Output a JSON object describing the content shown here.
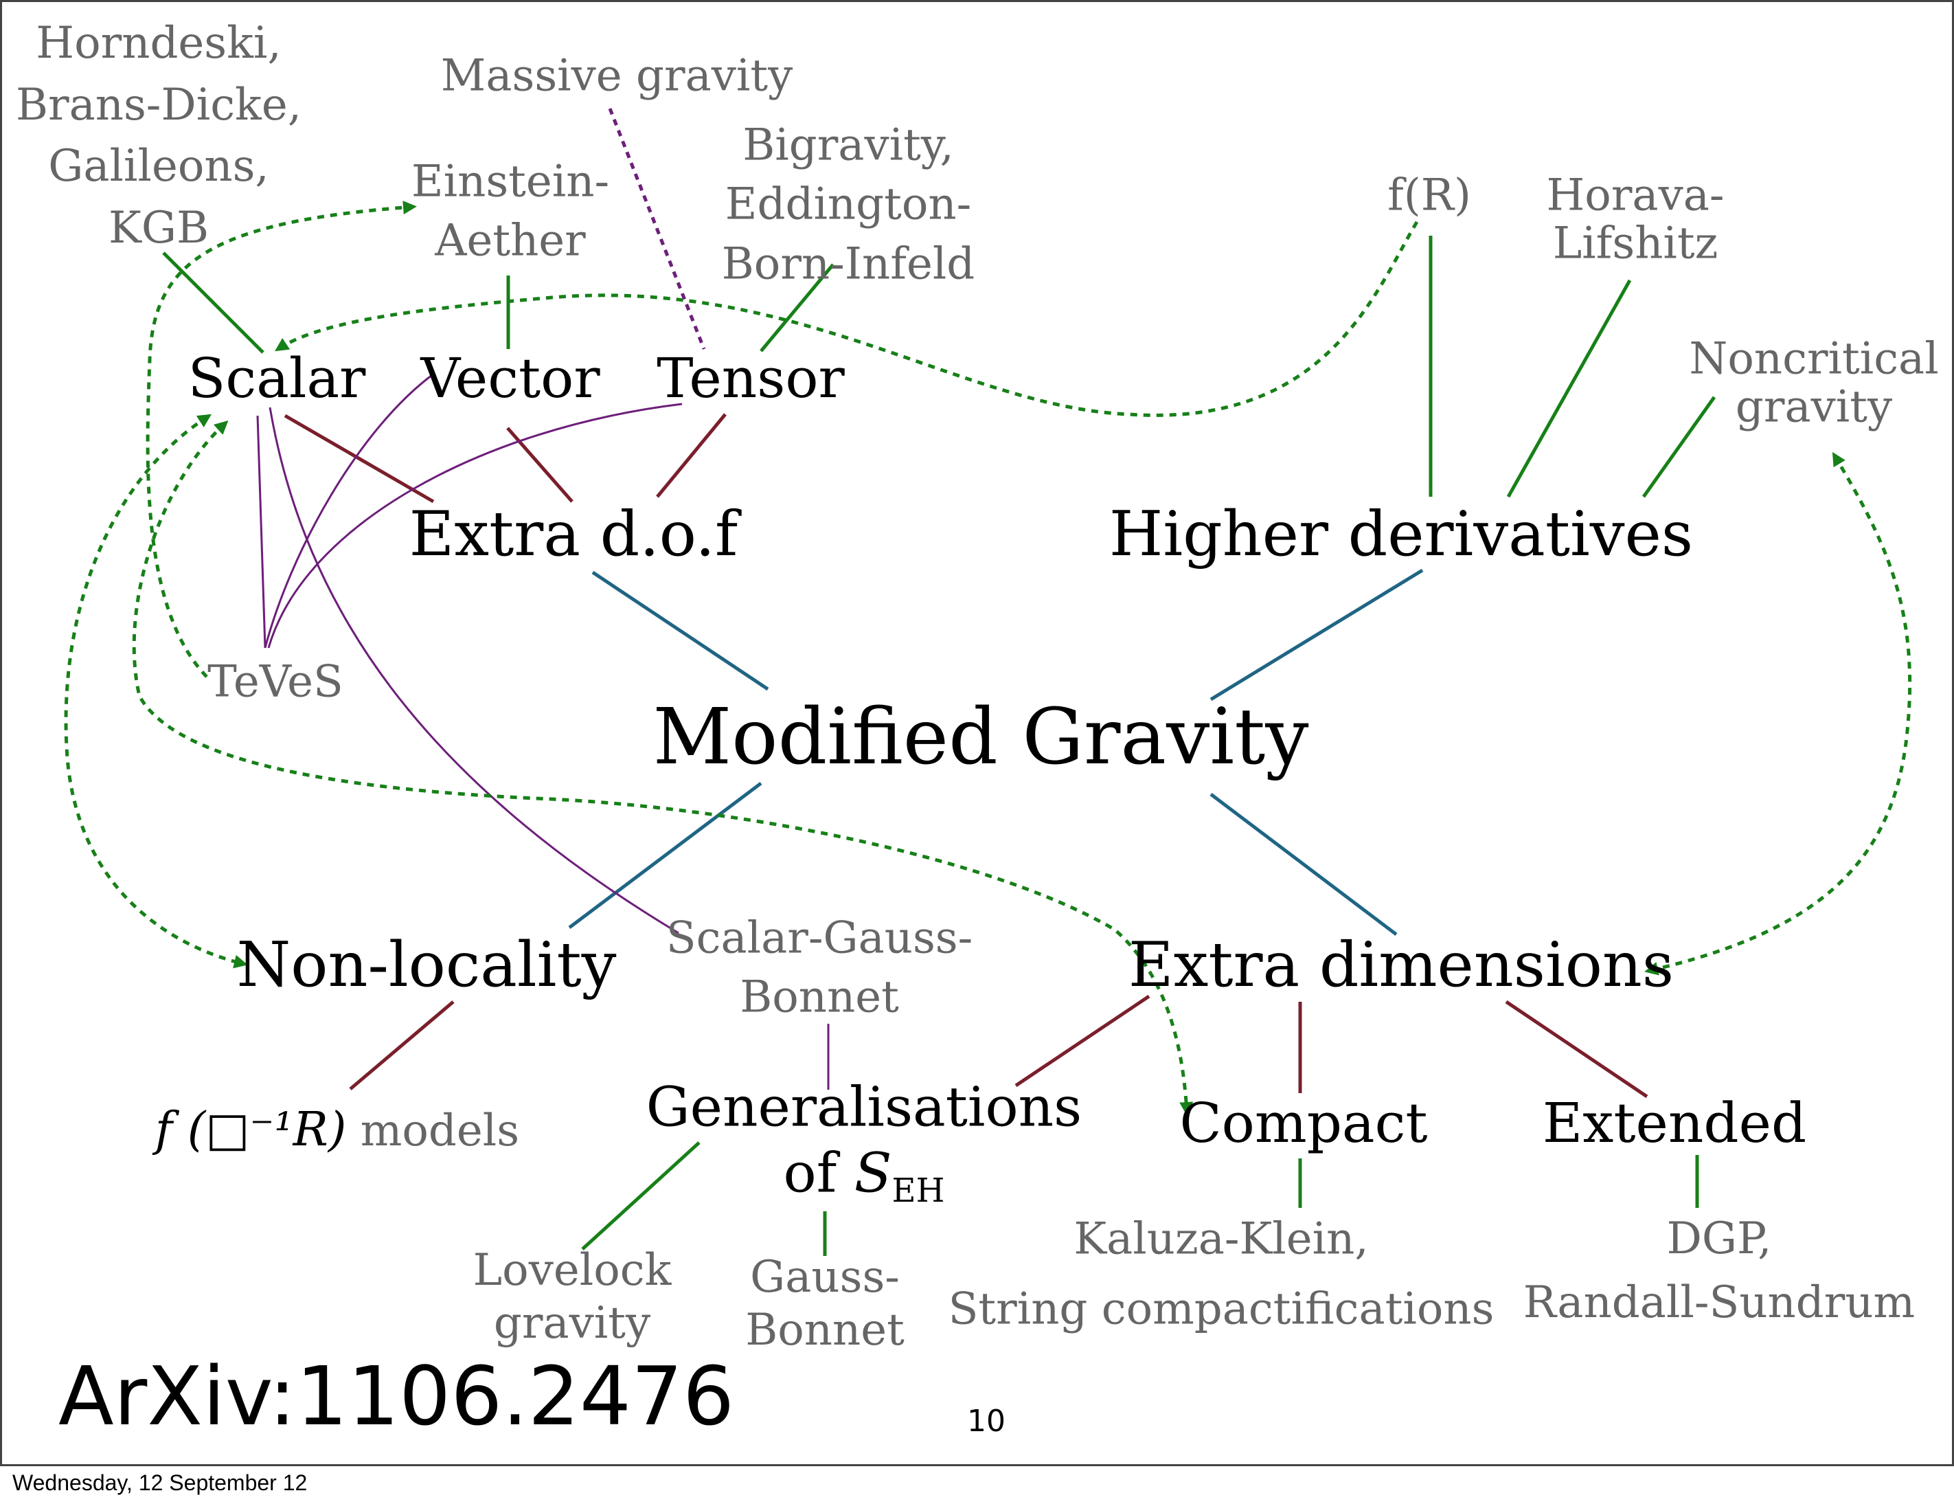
{
  "colors": {
    "main_edge": "#1f6584",
    "sub_edge": "#7a1f2b",
    "leaf_edge": "#178018",
    "purple_edge": "#6d1f7a",
    "arrow": "#178018",
    "gray_text": "#666666"
  },
  "diagram": {
    "center": "Modified Gravity",
    "categories": {
      "extra_dof": "Extra d.o.f",
      "higher_derivatives": "Higher derivatives",
      "non_locality": "Non-locality",
      "extra_dimensions": "Extra dimensions"
    },
    "fields": {
      "scalar": "Scalar",
      "vector": "Vector",
      "tensor": "Tensor"
    },
    "extra_dim_children": {
      "compact": "Compact",
      "extended": "Extended"
    },
    "generalisations": {
      "line1": "Generalisations",
      "line2_prefix": "of ",
      "symbol": "S",
      "subscript": "EH"
    },
    "theories": {
      "horndeski": [
        "Horndeski,",
        "Brans-Dicke,",
        "Galileons,",
        "KGB"
      ],
      "massive_gravity": "Massive gravity",
      "einstein_aether": [
        "Einstein-",
        "Aether"
      ],
      "bigravity": [
        "Bigravity,",
        "Eddington-",
        "Born-Infeld"
      ],
      "f_r": "f(R)",
      "horava": [
        "Horava-",
        "Lifshitz"
      ],
      "noncritical": [
        "Noncritical",
        "gravity"
      ],
      "teves": "TeVeS",
      "scalar_gauss_bonnet": [
        "Scalar-Gauss-",
        "Bonnet"
      ],
      "nonlocal_models_formula": "f (□⁻¹R)",
      "nonlocal_models_suffix": "models",
      "lovelock": [
        "Lovelock",
        "gravity"
      ],
      "gauss_bonnet": [
        "Gauss-",
        "Bonnet"
      ],
      "kaluza_klein": [
        "Kaluza-Klein,",
        "String compactifications"
      ],
      "dgp": [
        "DGP,",
        "Randall-Sundrum"
      ]
    }
  },
  "slide": {
    "reference": "ArXiv:1106.2476",
    "page_number": "10",
    "footer_date": "Wednesday, 12 September 12"
  }
}
